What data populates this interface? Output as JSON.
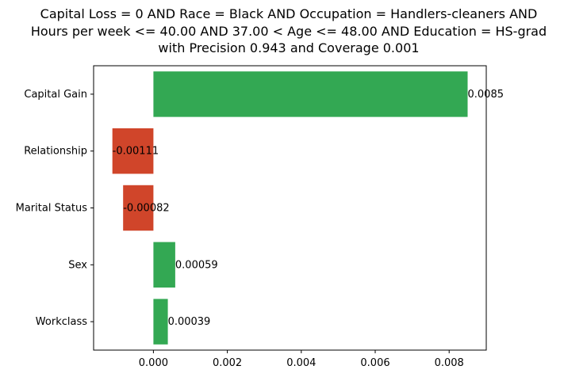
{
  "chart_data": {
    "type": "bar",
    "orientation": "horizontal",
    "title_lines": [
      "Capital Loss = 0 AND Race = Black AND Occupation = Handlers-cleaners AND",
      "Hours per week <= 40.00 AND 37.00 < Age <= 48.00 AND Education = HS-grad",
      "with Precision 0.943 and Coverage 0.001"
    ],
    "xlabel": "",
    "ylabel": "",
    "categories": [
      "Capital Gain",
      "Relationship",
      "Marital Status",
      "Sex",
      "Workclass"
    ],
    "values": [
      0.0085,
      -0.00111,
      -0.00082,
      0.00059,
      0.00039
    ],
    "value_labels": [
      "0.0085",
      "-0.00111",
      "-0.00082",
      "0.00059",
      "0.00039"
    ],
    "xlim": [
      -0.001618,
      0.009004
    ],
    "xticks": [
      0.0,
      0.002,
      0.004,
      0.006,
      0.008
    ],
    "xtick_labels": [
      "0.000",
      "0.002",
      "0.004",
      "0.006",
      "0.008"
    ],
    "grid": false,
    "legend": "none",
    "colors": {
      "positive": "#33a853",
      "negative": "#d0452a"
    }
  }
}
